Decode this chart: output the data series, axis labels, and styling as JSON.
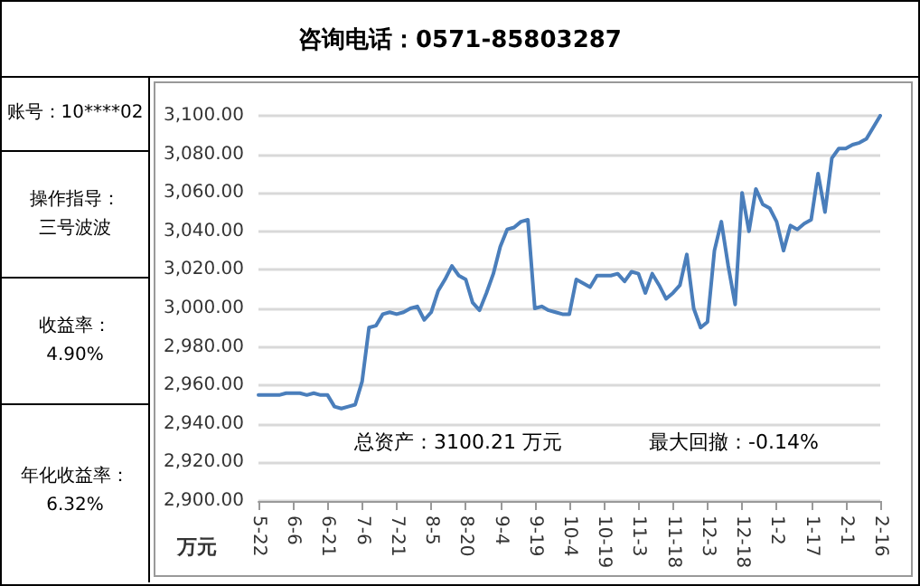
{
  "chart_data": {
    "type": "line",
    "title": "咨询电话：0571-85803287",
    "ylabel": "万元",
    "annotations": [
      "账号：10****02",
      "操作指导：",
      "三号波波",
      "收益率：",
      "4.90%",
      "年化收益率：",
      "6.32%",
      "总资产：3100.21 万元",
      "最大回撤：-0.14%"
    ],
    "categories": [
      "5-22",
      null,
      null,
      null,
      null,
      "6-6",
      null,
      null,
      null,
      null,
      "6-21",
      null,
      null,
      null,
      null,
      "7-6",
      null,
      null,
      null,
      null,
      "7-21",
      null,
      null,
      null,
      null,
      "8-5",
      null,
      null,
      null,
      null,
      "8-20",
      null,
      null,
      null,
      null,
      "9-4",
      null,
      null,
      null,
      null,
      "9-19",
      null,
      null,
      null,
      null,
      "10-4",
      null,
      null,
      null,
      null,
      "10-19",
      null,
      null,
      null,
      null,
      "11-3",
      null,
      null,
      null,
      null,
      "11-18",
      null,
      null,
      null,
      null,
      "12-3",
      null,
      null,
      null,
      null,
      "12-18",
      null,
      null,
      null,
      null,
      "1-2",
      null,
      null,
      null,
      null,
      "1-17",
      null,
      null,
      null,
      null,
      "2-1",
      null,
      null,
      null,
      null,
      "2-16"
    ],
    "series": [
      {
        "color": "#4a7ebb",
        "values": [
          2955,
          2955,
          2955,
          2955,
          2956,
          2956,
          2956,
          2955,
          2956,
          2955,
          2955,
          2949,
          2948,
          2949,
          2950,
          2962,
          2990,
          2991,
          2997,
          2998,
          2997,
          2998,
          3000,
          3001,
          2994,
          2998,
          3009,
          3015,
          3022,
          3017,
          3015,
          3003,
          2999,
          3008,
          3018,
          3032,
          3041,
          3042,
          3045,
          3046,
          3000,
          3001,
          2999,
          2998,
          2997,
          2997,
          3015,
          3013,
          3011,
          3017,
          3017,
          3017,
          3018,
          3014,
          3019,
          3018,
          3008,
          3018,
          3012,
          3005,
          3008,
          3012,
          3028,
          3000,
          2990,
          2993,
          3030,
          3045,
          3022,
          3002,
          3060,
          3040,
          3062,
          3054,
          3052,
          3045,
          3030,
          3043,
          3041,
          3044,
          3046,
          3070,
          3050,
          3078,
          3083,
          3083,
          3085,
          3086,
          3088,
          3094,
          3100
        ]
      }
    ],
    "ylim": [
      2900,
      3100
    ],
    "yticks": [
      {
        "value": 2900,
        "label": "2,900.00"
      },
      {
        "value": 2920,
        "label": "2,920.00"
      },
      {
        "value": 2940,
        "label": "2,940.00"
      },
      {
        "value": 2960,
        "label": "2,960.00"
      },
      {
        "value": 2980,
        "label": "2,980.00"
      },
      {
        "value": 3000,
        "label": "3,000.00"
      },
      {
        "value": 3020,
        "label": "3,020.00"
      },
      {
        "value": 3040,
        "label": "3,040.00"
      },
      {
        "value": 3060,
        "label": "3,060.00"
      },
      {
        "value": 3080,
        "label": "3,080.00"
      },
      {
        "value": 3100,
        "label": "3,100.00"
      }
    ],
    "grid": "y",
    "marker": "none",
    "line_style": "solid"
  }
}
